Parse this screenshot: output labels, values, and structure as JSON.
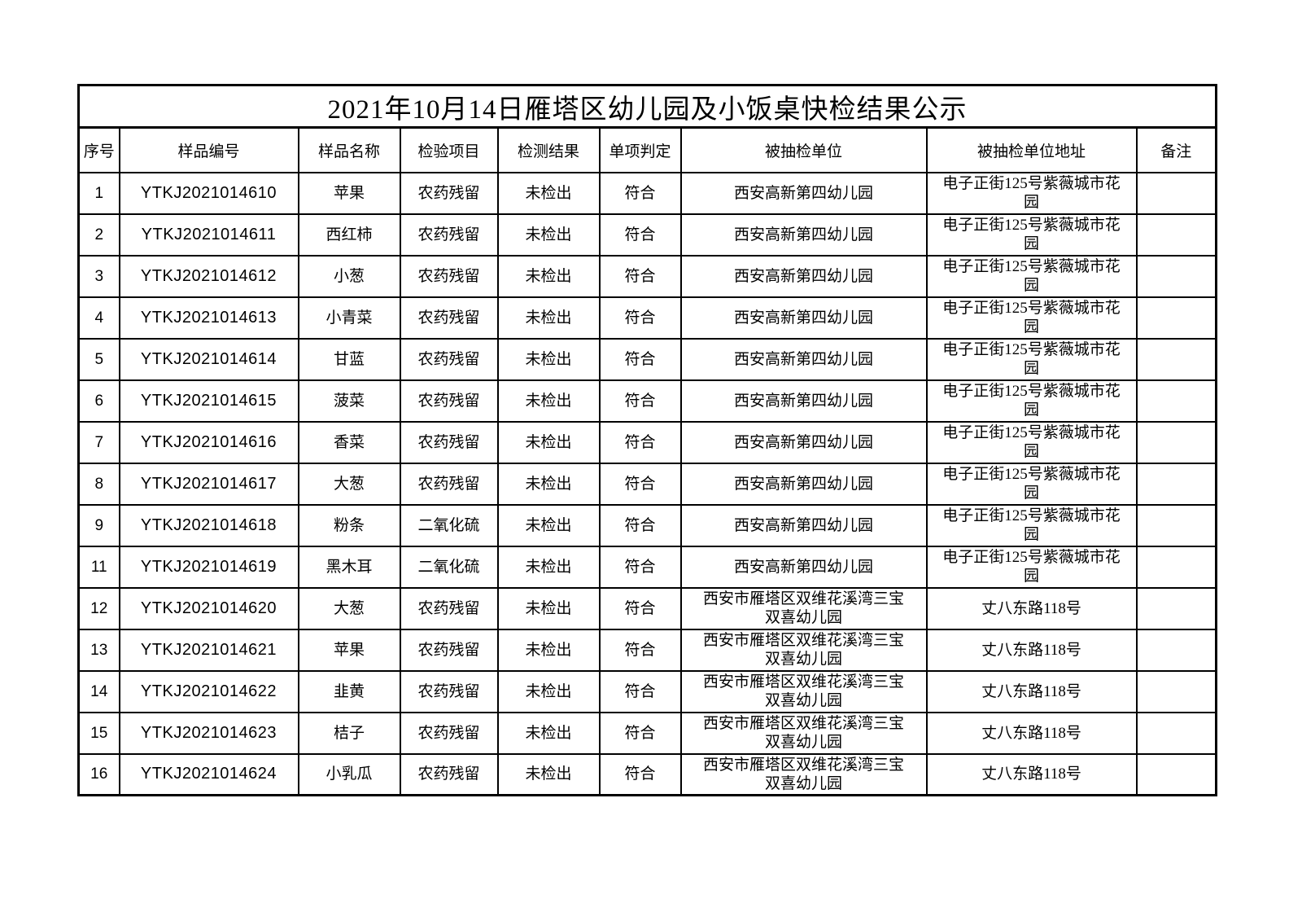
{
  "page": {
    "background_color": "#ffffff",
    "border_color": "#000000",
    "text_color": "#000000"
  },
  "document": {
    "title": "2021年10月14日雁塔区幼儿园及小饭桌快检结果公示",
    "table": {
      "columns": [
        "序号",
        "样品编号",
        "样品名称",
        "检验项目",
        "检测结果",
        "单项判定",
        "被抽检单位",
        "被抽检单位地址",
        "备注"
      ],
      "rows": [
        {
          "no": "1",
          "sample_id": "YTKJ2021014610",
          "sample_name": "苹果",
          "test_item": "农药残留",
          "result": "未检出",
          "judgment": "符合",
          "unit": "西安高新第四幼儿园",
          "address": "电子正街125号紫薇城市花园",
          "remark": ""
        },
        {
          "no": "2",
          "sample_id": "YTKJ2021014611",
          "sample_name": "西红柿",
          "test_item": "农药残留",
          "result": "未检出",
          "judgment": "符合",
          "unit": "西安高新第四幼儿园",
          "address": "电子正街125号紫薇城市花园",
          "remark": ""
        },
        {
          "no": "3",
          "sample_id": "YTKJ2021014612",
          "sample_name": "小葱",
          "test_item": "农药残留",
          "result": "未检出",
          "judgment": "符合",
          "unit": "西安高新第四幼儿园",
          "address": "电子正街125号紫薇城市花园",
          "remark": ""
        },
        {
          "no": "4",
          "sample_id": "YTKJ2021014613",
          "sample_name": "小青菜",
          "test_item": "农药残留",
          "result": "未检出",
          "judgment": "符合",
          "unit": "西安高新第四幼儿园",
          "address": "电子正街125号紫薇城市花园",
          "remark": ""
        },
        {
          "no": "5",
          "sample_id": "YTKJ2021014614",
          "sample_name": "甘蓝",
          "test_item": "农药残留",
          "result": "未检出",
          "judgment": "符合",
          "unit": "西安高新第四幼儿园",
          "address": "电子正街125号紫薇城市花园",
          "remark": ""
        },
        {
          "no": "6",
          "sample_id": "YTKJ2021014615",
          "sample_name": "菠菜",
          "test_item": "农药残留",
          "result": "未检出",
          "judgment": "符合",
          "unit": "西安高新第四幼儿园",
          "address": "电子正街125号紫薇城市花园",
          "remark": ""
        },
        {
          "no": "7",
          "sample_id": "YTKJ2021014616",
          "sample_name": "香菜",
          "test_item": "农药残留",
          "result": "未检出",
          "judgment": "符合",
          "unit": "西安高新第四幼儿园",
          "address": "电子正街125号紫薇城市花园",
          "remark": ""
        },
        {
          "no": "8",
          "sample_id": "YTKJ2021014617",
          "sample_name": "大葱",
          "test_item": "农药残留",
          "result": "未检出",
          "judgment": "符合",
          "unit": "西安高新第四幼儿园",
          "address": "电子正街125号紫薇城市花园",
          "remark": ""
        },
        {
          "no": "9",
          "sample_id": "YTKJ2021014618",
          "sample_name": "粉条",
          "test_item": "二氧化硫",
          "result": "未检出",
          "judgment": "符合",
          "unit": "西安高新第四幼儿园",
          "address": "电子正街125号紫薇城市花园",
          "remark": ""
        },
        {
          "no": "11",
          "sample_id": "YTKJ2021014619",
          "sample_name": "黑木耳",
          "test_item": "二氧化硫",
          "result": "未检出",
          "judgment": "符合",
          "unit": "西安高新第四幼儿园",
          "address": "电子正街125号紫薇城市花园",
          "remark": ""
        },
        {
          "no": "12",
          "sample_id": "YTKJ2021014620",
          "sample_name": "大葱",
          "test_item": "农药残留",
          "result": "未检出",
          "judgment": "符合",
          "unit": "西安市雁塔区双维花溪湾三宝双喜幼儿园",
          "address": "丈八东路118号",
          "remark": ""
        },
        {
          "no": "13",
          "sample_id": "YTKJ2021014621",
          "sample_name": "苹果",
          "test_item": "农药残留",
          "result": "未检出",
          "judgment": "符合",
          "unit": "西安市雁塔区双维花溪湾三宝双喜幼儿园",
          "address": "丈八东路118号",
          "remark": ""
        },
        {
          "no": "14",
          "sample_id": "YTKJ2021014622",
          "sample_name": "韭黄",
          "test_item": "农药残留",
          "result": "未检出",
          "judgment": "符合",
          "unit": "西安市雁塔区双维花溪湾三宝双喜幼儿园",
          "address": "丈八东路118号",
          "remark": ""
        },
        {
          "no": "15",
          "sample_id": "YTKJ2021014623",
          "sample_name": "桔子",
          "test_item": "农药残留",
          "result": "未检出",
          "judgment": "符合",
          "unit": "西安市雁塔区双维花溪湾三宝双喜幼儿园",
          "address": "丈八东路118号",
          "remark": ""
        },
        {
          "no": "16",
          "sample_id": "YTKJ2021014624",
          "sample_name": "小乳瓜",
          "test_item": "农药残留",
          "result": "未检出",
          "judgment": "符合",
          "unit": "西安市雁塔区双维花溪湾三宝双喜幼儿园",
          "address": "丈八东路118号",
          "remark": ""
        }
      ]
    }
  }
}
